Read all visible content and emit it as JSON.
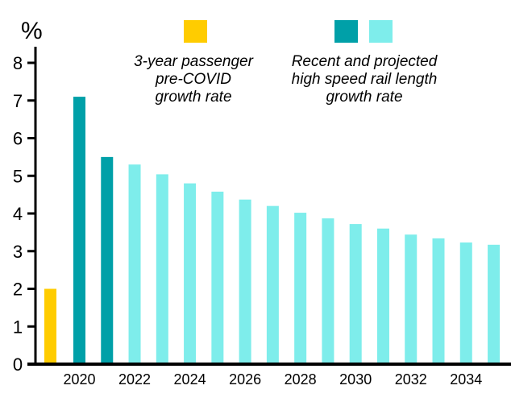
{
  "chart_data": {
    "type": "bar",
    "ylabel": "%",
    "ylim": [
      0,
      8
    ],
    "yticks": [
      "0",
      "1",
      "2",
      "3",
      "4",
      "5",
      "6",
      "7",
      "8"
    ],
    "xtick_labels": [
      "2020",
      "2022",
      "2024",
      "2026",
      "2028",
      "2030",
      "2032",
      "2034"
    ],
    "grid": false,
    "legend_placement": "top",
    "colors": {
      "pre_covid": "#FFCC00",
      "recent": "#00A0A8",
      "projected": "#7EEDEB"
    },
    "legend": [
      {
        "lines": [
          "3-year passenger",
          "pre-COVID",
          "growth rate"
        ],
        "colors": [
          "#FFCC00"
        ]
      },
      {
        "lines": [
          "Recent and projected",
          "high speed rail length",
          "growth rate"
        ],
        "colors": [
          "#00A0A8",
          "#7EEDEB"
        ]
      }
    ],
    "pre_covid": {
      "name": "3-year passenger pre-COVID growth rate",
      "value": 2.0
    },
    "series": [
      {
        "name": "Recent high speed rail length growth rate",
        "x": [
          2020,
          2021
        ],
        "values": [
          7.1,
          5.5
        ]
      },
      {
        "name": "Projected high speed rail length growth rate",
        "x": [
          2022,
          2023,
          2024,
          2025,
          2026,
          2027,
          2028,
          2029,
          2030,
          2031,
          2032,
          2033,
          2034,
          2035
        ],
        "values": [
          5.3,
          5.04,
          4.8,
          4.58,
          4.37,
          4.2,
          4.02,
          3.87,
          3.72,
          3.6,
          3.44,
          3.34,
          3.23,
          3.17
        ]
      }
    ]
  }
}
